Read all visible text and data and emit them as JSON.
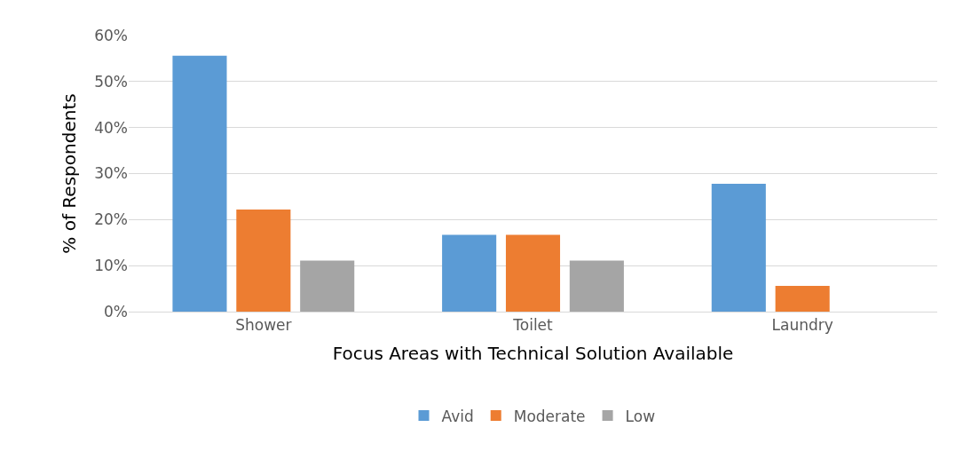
{
  "chart_data": {
    "type": "bar",
    "xlabel": "Focus Areas with Technical Solution Available",
    "ylabel": "% of Respondents",
    "categories": [
      "Shower",
      "Toilet",
      "Laundry"
    ],
    "series": [
      {
        "name": "Avid",
        "color": "#5b9bd5",
        "values": [
          55.6,
          16.7,
          27.8
        ]
      },
      {
        "name": "Moderate",
        "color": "#ed7d31",
        "values": [
          22.2,
          16.7,
          5.6
        ]
      },
      {
        "name": "Low",
        "color": "#a5a5a5",
        "values": [
          11.1,
          11.1,
          0
        ]
      }
    ],
    "ylim": [
      0,
      60
    ],
    "yticks": [
      {
        "value": 0,
        "label": "0%"
      },
      {
        "value": 10,
        "label": "10%"
      },
      {
        "value": 20,
        "label": "20%"
      },
      {
        "value": 30,
        "label": "30%"
      },
      {
        "value": 40,
        "label": "40%"
      },
      {
        "value": 50,
        "label": "50%"
      },
      {
        "value": 60,
        "label": "60%"
      }
    ],
    "grid": "y",
    "legend": "bottom"
  }
}
